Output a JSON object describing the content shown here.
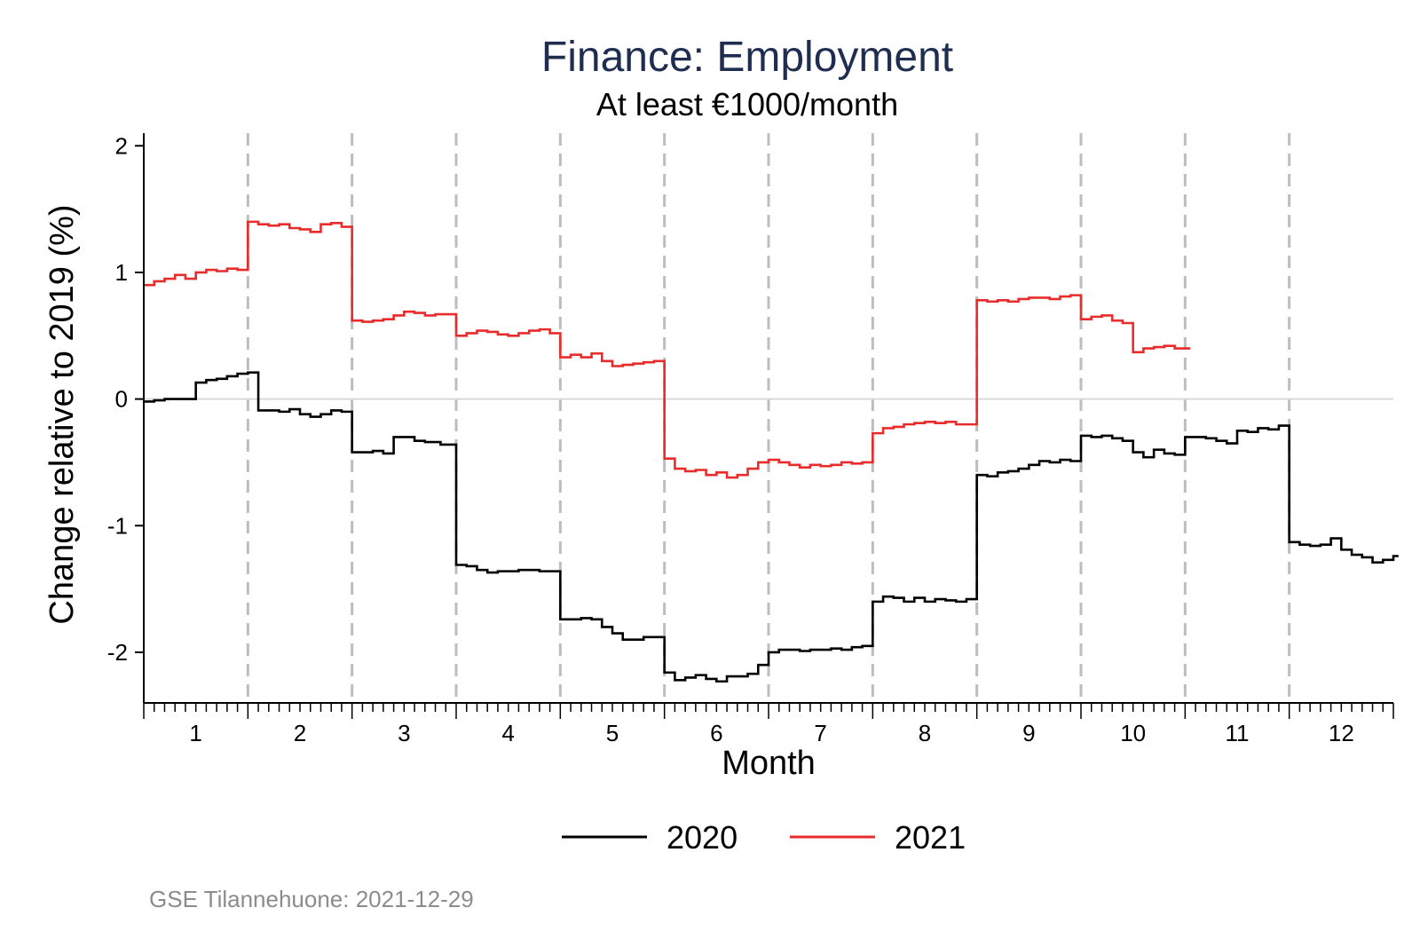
{
  "chart_data": {
    "type": "line",
    "title": "Finance: Employment",
    "subtitle": "At least €1000/month",
    "xlabel": "Month",
    "ylabel": "Change relative to 2019 (%)",
    "xlim": [
      0.5,
      12.5
    ],
    "ylim": [
      -2.4,
      2.1
    ],
    "yticks": [
      -2,
      -1,
      0,
      1,
      2
    ],
    "ytick_labels": [
      "-2",
      "-1",
      "0",
      "1",
      "2"
    ],
    "xtick_labels": [
      "1",
      "2",
      "3",
      "4",
      "5",
      "6",
      "7",
      "8",
      "9",
      "10",
      "11",
      "12"
    ],
    "zero_line": true,
    "month_separators": true,
    "legend_position": "bottom",
    "series": [
      {
        "name": "2020",
        "color": "#000000",
        "step": true,
        "x": [
          0.5,
          0.6,
          0.7,
          0.8,
          0.95,
          1.0,
          1.1,
          1.2,
          1.3,
          1.4,
          1.5,
          1.6,
          1.7,
          1.8,
          1.9,
          2.0,
          2.1,
          2.2,
          2.3,
          2.4,
          2.5,
          2.6,
          2.7,
          2.8,
          2.9,
          3.0,
          3.1,
          3.2,
          3.35,
          3.5,
          3.6,
          3.7,
          3.8,
          3.9,
          4.0,
          4.1,
          4.2,
          4.3,
          4.4,
          4.5,
          4.6,
          4.7,
          4.8,
          4.9,
          5.0,
          5.1,
          5.2,
          5.3,
          5.4,
          5.5,
          5.6,
          5.7,
          5.8,
          5.9,
          6.0,
          6.1,
          6.2,
          6.3,
          6.4,
          6.5,
          6.6,
          6.7,
          6.8,
          6.9,
          7.0,
          7.1,
          7.2,
          7.3,
          7.4,
          7.5,
          7.6,
          7.7,
          7.8,
          7.9,
          8.0,
          8.1,
          8.2,
          8.3,
          8.4,
          8.5,
          8.6,
          8.7,
          8.8,
          8.9,
          9.0,
          9.1,
          9.2,
          9.3,
          9.4,
          9.5,
          9.6,
          9.7,
          9.8,
          9.9,
          10.0,
          10.1,
          10.2,
          10.3,
          10.4,
          10.5,
          10.6,
          10.7,
          10.8,
          10.9,
          11.0,
          11.1,
          11.2,
          11.3,
          11.4,
          11.5,
          11.6,
          11.7,
          11.8,
          11.9,
          12.0,
          12.1,
          12.2,
          12.3,
          12.4,
          12.5
        ],
        "y": [
          -0.02,
          -0.01,
          0.0,
          0.0,
          0.0,
          0.13,
          0.15,
          0.16,
          0.18,
          0.2,
          0.21,
          -0.09,
          -0.09,
          -0.1,
          -0.08,
          -0.12,
          -0.14,
          -0.12,
          -0.09,
          -0.1,
          -0.42,
          -0.42,
          -0.41,
          -0.43,
          -0.3,
          -0.3,
          -0.33,
          -0.34,
          -0.36,
          -1.31,
          -1.32,
          -1.35,
          -1.37,
          -1.36,
          -1.36,
          -1.35,
          -1.35,
          -1.36,
          -1.36,
          -1.74,
          -1.74,
          -1.73,
          -1.74,
          -1.8,
          -1.85,
          -1.9,
          -1.9,
          -1.88,
          -1.88,
          -2.16,
          -2.22,
          -2.2,
          -2.18,
          -2.21,
          -2.23,
          -2.19,
          -2.19,
          -2.17,
          -2.1,
          -2.0,
          -1.98,
          -1.98,
          -1.99,
          -1.98,
          -1.98,
          -1.97,
          -1.98,
          -1.96,
          -1.95,
          -1.6,
          -1.56,
          -1.57,
          -1.6,
          -1.57,
          -1.6,
          -1.58,
          -1.59,
          -1.6,
          -1.58,
          -0.6,
          -0.61,
          -0.58,
          -0.57,
          -0.55,
          -0.52,
          -0.49,
          -0.5,
          -0.48,
          -0.49,
          -0.29,
          -0.3,
          -0.29,
          -0.31,
          -0.33,
          -0.42,
          -0.46,
          -0.4,
          -0.43,
          -0.44,
          -0.3,
          -0.3,
          -0.31,
          -0.33,
          -0.35,
          -0.25,
          -0.26,
          -0.23,
          -0.24,
          -0.21,
          -1.13,
          -1.15,
          -1.16,
          -1.15,
          -1.1,
          -1.19,
          -1.23,
          -1.25,
          -1.29,
          -1.27,
          -1.24
        ]
      },
      {
        "name": "2021",
        "color": "#e82c2c",
        "step": true,
        "x": [
          0.5,
          0.6,
          0.7,
          0.8,
          0.9,
          1.0,
          1.1,
          1.2,
          1.3,
          1.4,
          1.5,
          1.6,
          1.7,
          1.8,
          1.9,
          2.0,
          2.1,
          2.2,
          2.3,
          2.4,
          2.5,
          2.6,
          2.7,
          2.8,
          2.9,
          3.0,
          3.1,
          3.2,
          3.3,
          3.4,
          3.5,
          3.6,
          3.7,
          3.8,
          3.9,
          4.0,
          4.1,
          4.2,
          4.3,
          4.4,
          4.5,
          4.6,
          4.7,
          4.8,
          4.9,
          5.0,
          5.1,
          5.2,
          5.3,
          5.4,
          5.5,
          5.6,
          5.7,
          5.8,
          5.9,
          6.0,
          6.1,
          6.2,
          6.3,
          6.4,
          6.5,
          6.6,
          6.7,
          6.8,
          6.9,
          7.0,
          7.1,
          7.2,
          7.3,
          7.4,
          7.5,
          7.6,
          7.7,
          7.8,
          7.9,
          8.0,
          8.1,
          8.2,
          8.3,
          8.4,
          8.5,
          8.6,
          8.7,
          8.8,
          8.9,
          9.0,
          9.1,
          9.2,
          9.3,
          9.4,
          9.5,
          9.6,
          9.7,
          9.8,
          9.9,
          10.0,
          10.1,
          10.2,
          10.3,
          10.4,
          10.5
        ],
        "y": [
          0.9,
          0.93,
          0.95,
          0.98,
          0.95,
          1.0,
          1.02,
          1.01,
          1.03,
          1.02,
          1.4,
          1.38,
          1.37,
          1.38,
          1.35,
          1.34,
          1.32,
          1.38,
          1.39,
          1.36,
          0.62,
          0.61,
          0.62,
          0.63,
          0.66,
          0.69,
          0.68,
          0.66,
          0.67,
          0.67,
          0.5,
          0.52,
          0.54,
          0.53,
          0.51,
          0.5,
          0.52,
          0.54,
          0.55,
          0.52,
          0.33,
          0.35,
          0.33,
          0.36,
          0.3,
          0.26,
          0.27,
          0.28,
          0.29,
          0.3,
          -0.47,
          -0.55,
          -0.57,
          -0.56,
          -0.6,
          -0.58,
          -0.62,
          -0.6,
          -0.55,
          -0.5,
          -0.48,
          -0.5,
          -0.52,
          -0.54,
          -0.52,
          -0.53,
          -0.52,
          -0.5,
          -0.51,
          -0.5,
          -0.27,
          -0.23,
          -0.22,
          -0.2,
          -0.19,
          -0.18,
          -0.19,
          -0.18,
          -0.2,
          -0.2,
          0.78,
          0.77,
          0.78,
          0.77,
          0.79,
          0.8,
          0.8,
          0.79,
          0.81,
          0.82,
          0.63,
          0.65,
          0.66,
          0.62,
          0.6,
          0.37,
          0.4,
          0.41,
          0.42,
          0.4,
          0.4
        ]
      }
    ],
    "footnote": "GSE Tilannehuone: 2021-12-29"
  }
}
